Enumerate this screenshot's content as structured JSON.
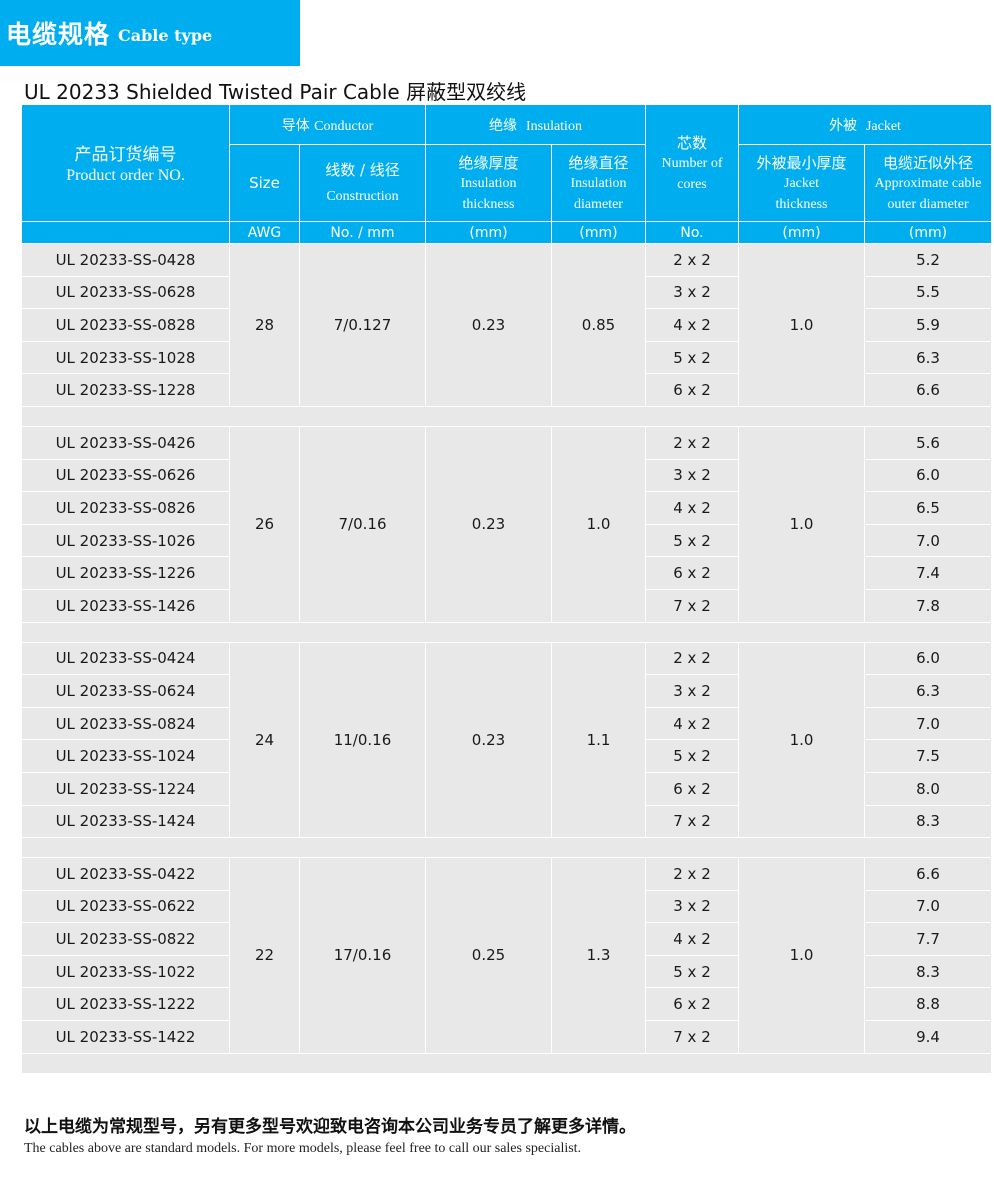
{
  "banner": {
    "zh": "电缆规格",
    "en": "Cable type"
  },
  "title": "UL 20233 Shielded Twisted Pair Cable  屏蔽型双绞线",
  "header": {
    "product_zh": "产品订货编号",
    "product_en": "Product order NO.",
    "conductor_zh": "导体",
    "conductor_en": "Conductor",
    "insulation_zh": "绝缘",
    "insulation_en": "Insulation",
    "jacket_zh": "外被",
    "jacket_en": "Jacket",
    "size": "Size",
    "construction_zh": "线数 / 线径",
    "construction_en": "Construction",
    "ins_thick_zh": "绝缘厚度",
    "ins_thick_en1": "Insulation",
    "ins_thick_en2": "thickness",
    "ins_dia_zh": "绝缘直径",
    "ins_dia_en1": "Insulation",
    "ins_dia_en2": "diameter",
    "cores_zh": "芯数",
    "cores_en1": "Number of",
    "cores_en2": "cores",
    "jacket_thick_zh": "外被最小厚度",
    "jacket_thick_en1": "Jacket",
    "jacket_thick_en2": "thickness",
    "od_zh": "电缆近似外径",
    "od_en1": "Approximate cable",
    "od_en2": "outer diameter",
    "unit_awg": "AWG",
    "unit_no_mm": "No. / mm",
    "unit_mm1": "(mm)",
    "unit_mm2": "(mm)",
    "unit_no": "No.",
    "unit_mm3": "(mm)",
    "unit_mm4": "(mm)"
  },
  "groups": [
    {
      "awg": "28",
      "construction": "7/0.127",
      "ins_thickness": "0.23",
      "ins_diameter": "0.85",
      "jacket_thickness": "1.0",
      "rows": [
        {
          "product": "UL 20233-SS-0428",
          "cores": "2 x 2",
          "od": "5.2"
        },
        {
          "product": "UL 20233-SS-0628",
          "cores": "3 x 2",
          "od": "5.5"
        },
        {
          "product": "UL 20233-SS-0828",
          "cores": "4 x 2",
          "od": "5.9"
        },
        {
          "product": "UL 20233-SS-1028",
          "cores": "5 x 2",
          "od": "6.3"
        },
        {
          "product": "UL 20233-SS-1228",
          "cores": "6 x 2",
          "od": "6.6"
        }
      ]
    },
    {
      "awg": "26",
      "construction": "7/0.16",
      "ins_thickness": "0.23",
      "ins_diameter": "1.0",
      "jacket_thickness": "1.0",
      "rows": [
        {
          "product": "UL 20233-SS-0426",
          "cores": "2 x 2",
          "od": "5.6"
        },
        {
          "product": "UL 20233-SS-0626",
          "cores": "3 x 2",
          "od": "6.0"
        },
        {
          "product": "UL 20233-SS-0826",
          "cores": "4 x 2",
          "od": "6.5"
        },
        {
          "product": "UL 20233-SS-1026",
          "cores": "5 x 2",
          "od": "7.0"
        },
        {
          "product": "UL 20233-SS-1226",
          "cores": "6 x 2",
          "od": "7.4"
        },
        {
          "product": "UL 20233-SS-1426",
          "cores": "7 x 2",
          "od": "7.8"
        }
      ]
    },
    {
      "awg": "24",
      "construction": "11/0.16",
      "ins_thickness": "0.23",
      "ins_diameter": "1.1",
      "jacket_thickness": "1.0",
      "rows": [
        {
          "product": "UL 20233-SS-0424",
          "cores": "2 x 2",
          "od": "6.0"
        },
        {
          "product": "UL 20233-SS-0624",
          "cores": "3 x 2",
          "od": "6.3"
        },
        {
          "product": "UL 20233-SS-0824",
          "cores": "4 x 2",
          "od": "7.0"
        },
        {
          "product": "UL 20233-SS-1024",
          "cores": "5 x 2",
          "od": "7.5"
        },
        {
          "product": "UL 20233-SS-1224",
          "cores": "6 x 2",
          "od": "8.0"
        },
        {
          "product": "UL 20233-SS-1424",
          "cores": "7 x 2",
          "od": "8.3"
        }
      ]
    },
    {
      "awg": "22",
      "construction": "17/0.16",
      "ins_thickness": "0.25",
      "ins_diameter": "1.3",
      "jacket_thickness": "1.0",
      "rows": [
        {
          "product": "UL 20233-SS-0422",
          "cores": "2 x 2",
          "od": "6.6"
        },
        {
          "product": "UL 20233-SS-0622",
          "cores": "3 x 2",
          "od": "7.0"
        },
        {
          "product": "UL 20233-SS-0822",
          "cores": "4 x 2",
          "od": "7.7"
        },
        {
          "product": "UL 20233-SS-1022",
          "cores": "5 x 2",
          "od": "8.3"
        },
        {
          "product": "UL 20233-SS-1222",
          "cores": "6 x 2",
          "od": "8.8"
        },
        {
          "product": "UL 20233-SS-1422",
          "cores": "7 x 2",
          "od": "9.4"
        }
      ]
    }
  ],
  "footer": {
    "zh": "以上电缆为常规型号，另有更多型号欢迎致电咨询本公司业务专员了解更多详情。",
    "en": "The cables above are standard models. For more models, please feel free to call our sales specialist."
  }
}
